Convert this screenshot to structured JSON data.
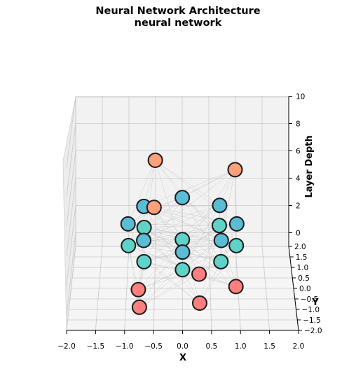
{
  "title": "Neural Network Architecture",
  "subtitle": "neural network",
  "chart_data": {
    "type": "scatter",
    "projection": "3d",
    "title": "Neural Network Architecture",
    "subtitle": "neural network",
    "xlabel": "X",
    "ylabel": "Y",
    "zlabel": "Layer Depth",
    "xlim": [
      -2.0,
      2.0
    ],
    "ylim": [
      -2.0,
      2.0
    ],
    "zlim": [
      -1,
      10
    ],
    "x_ticks": [
      "−2.0",
      "−1.5",
      "−1.0",
      "−0.5",
      "0.0",
      "0.5",
      "1.0",
      "1.5",
      "2.0"
    ],
    "y_ticks": [
      "−2.0",
      "−1.5",
      "−1.0",
      "−0.5",
      "0.0",
      "0.5",
      "1.0",
      "1.5",
      "2.0"
    ],
    "z_ticks": [
      "0",
      "2",
      "4",
      "6",
      "8",
      "10"
    ],
    "grid": true,
    "layers": [
      {
        "color": "#ff7f7f",
        "nodes": [
          {
            "x": -0.75,
            "y": -1.6,
            "z": 0
          },
          {
            "x": -0.78,
            "y": -0.75,
            "z": 0
          },
          {
            "x": 0.3,
            "y": 0.0,
            "z": 0
          },
          {
            "x": 0.95,
            "y": -0.6,
            "z": 0
          },
          {
            "x": 0.3,
            "y": -1.4,
            "z": 0
          }
        ]
      },
      {
        "color": "#5fd3c8",
        "nodes": [
          {
            "x": -0.7,
            "y": 0.9,
            "z": 2
          },
          {
            "x": 0.0,
            "y": 0.3,
            "z": 2
          },
          {
            "x": 0.68,
            "y": 1.0,
            "z": 2
          },
          {
            "x": 0.97,
            "y": 0.0,
            "z": 2
          },
          {
            "x": 0.68,
            "y": -0.8,
            "z": 2
          },
          {
            "x": 0.0,
            "y": -1.2,
            "z": 2
          },
          {
            "x": -0.68,
            "y": -0.8,
            "z": 2
          },
          {
            "x": -0.97,
            "y": 0.0,
            "z": 2
          }
        ]
      },
      {
        "color": "#5bbcd6",
        "nodes": [
          {
            "x": -0.7,
            "y": 0.55,
            "z": 4
          },
          {
            "x": 0.0,
            "y": 1.0,
            "z": 4
          },
          {
            "x": 0.68,
            "y": 0.6,
            "z": 4
          },
          {
            "x": 0.97,
            "y": -0.35,
            "z": 4
          },
          {
            "x": 0.68,
            "y": -1.2,
            "z": 4
          },
          {
            "x": 0.0,
            "y": -1.8,
            "z": 4
          },
          {
            "x": -0.68,
            "y": -1.2,
            "z": 4
          },
          {
            "x": -0.97,
            "y": -0.35,
            "z": 4
          }
        ]
      },
      {
        "color": "#ffa07a",
        "nodes": [
          {
            "x": -0.5,
            "y": 1.5,
            "z": 6
          },
          {
            "x": 0.97,
            "y": 1.0,
            "z": 6
          },
          {
            "x": -0.5,
            "y": -1.0,
            "z": 6
          }
        ]
      }
    ]
  }
}
